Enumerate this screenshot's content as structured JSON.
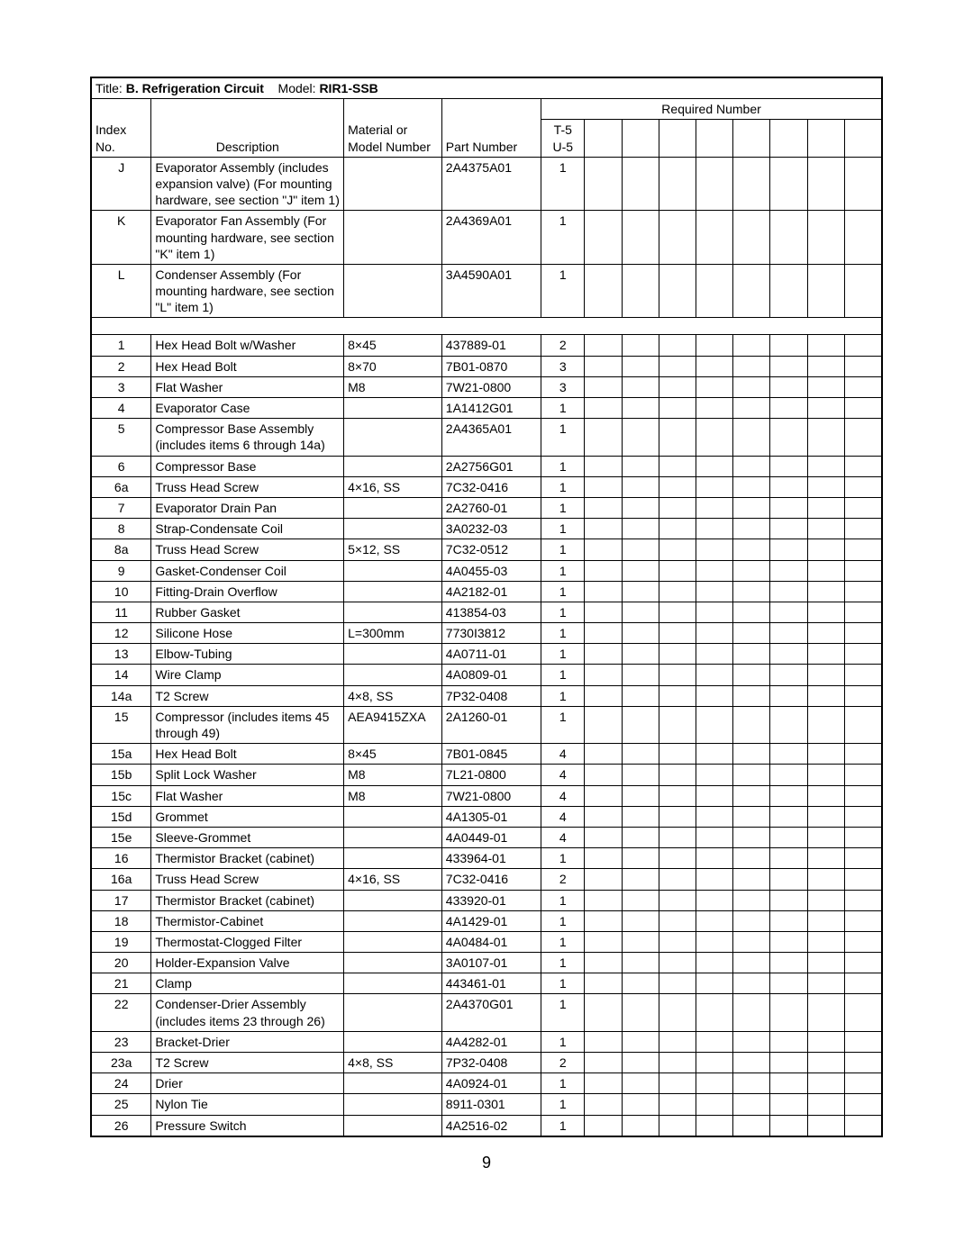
{
  "page_number": "9",
  "title": {
    "label": "Title: ",
    "name": "B. Refrigeration Circuit",
    "model_label": "Model: ",
    "model": "RIR1-SSB"
  },
  "headers": {
    "index": "Index No.",
    "description": "Description",
    "material": "Material or Model Number",
    "part": "Part Number",
    "required": "Required Number",
    "req_sub": "T-5 U-5"
  },
  "numExtraCols": 8,
  "rows": [
    {
      "idx": "J",
      "desc": "Evaporator Assembly (includes expansion valve) (For mounting hardware, see section \"J\" item 1)",
      "mat": "",
      "part": "2A4375A01",
      "req": "1"
    },
    {
      "idx": "K",
      "desc": "Evaporator Fan Assembly (For mounting hardware, see section \"K\" item 1)",
      "mat": "",
      "part": "2A4369A01",
      "req": "1"
    },
    {
      "idx": "L",
      "desc": "Condenser Assembly (For mounting hardware, see section \"L\" item 1)",
      "mat": "",
      "part": "3A4590A01",
      "req": "1"
    },
    {
      "spacer": true
    },
    {
      "idx": "1",
      "desc": "Hex Head Bolt w/Washer",
      "mat": "8×45",
      "part": "437889-01",
      "req": "2"
    },
    {
      "idx": "2",
      "desc": "Hex Head Bolt",
      "mat": "8×70",
      "part": "7B01-0870",
      "req": "3"
    },
    {
      "idx": "3",
      "desc": "Flat Washer",
      "mat": "M8",
      "part": "7W21-0800",
      "req": "3"
    },
    {
      "idx": "4",
      "desc": "Evaporator Case",
      "mat": "",
      "part": "1A1412G01",
      "req": "1"
    },
    {
      "idx": "5",
      "desc": "Compressor Base Assembly (includes items 6 through 14a)",
      "mat": "",
      "part": "2A4365A01",
      "req": "1"
    },
    {
      "idx": "6",
      "desc": "Compressor Base",
      "mat": "",
      "part": "2A2756G01",
      "req": "1"
    },
    {
      "idx": "6a",
      "desc": "Truss Head Screw",
      "mat": "4×16, SS",
      "part": "7C32-0416",
      "req": "1"
    },
    {
      "idx": "7",
      "desc": "Evaporator Drain Pan",
      "mat": "",
      "part": "2A2760-01",
      "req": "1"
    },
    {
      "idx": "8",
      "desc": "Strap-Condensate Coil",
      "mat": "",
      "part": "3A0232-03",
      "req": "1"
    },
    {
      "idx": "8a",
      "desc": "Truss Head Screw",
      "mat": "5×12, SS",
      "part": "7C32-0512",
      "req": "1"
    },
    {
      "idx": "9",
      "desc": "Gasket-Condenser Coil",
      "mat": "",
      "part": "4A0455-03",
      "req": "1"
    },
    {
      "idx": "10",
      "desc": "Fitting-Drain Overflow",
      "mat": "",
      "part": "4A2182-01",
      "req": "1"
    },
    {
      "idx": "11",
      "desc": "Rubber Gasket",
      "mat": "",
      "part": "413854-03",
      "req": "1"
    },
    {
      "idx": "12",
      "desc": "Silicone Hose",
      "mat": "L=300mm",
      "part": "7730I3812",
      "req": "1"
    },
    {
      "idx": "13",
      "desc": "Elbow-Tubing",
      "mat": "",
      "part": "4A0711-01",
      "req": "1"
    },
    {
      "idx": "14",
      "desc": "Wire Clamp",
      "mat": "",
      "part": "4A0809-01",
      "req": "1"
    },
    {
      "idx": "14a",
      "desc": "T2 Screw",
      "mat": "4×8, SS",
      "part": "7P32-0408",
      "req": "1"
    },
    {
      "idx": "15",
      "desc": "Compressor (includes items 45 through 49)",
      "mat": "AEA9415ZXA",
      "part": "2A1260-01",
      "req": "1"
    },
    {
      "idx": "15a",
      "desc": "Hex Head Bolt",
      "mat": "8×45",
      "part": "7B01-0845",
      "req": "4"
    },
    {
      "idx": "15b",
      "desc": "Split Lock Washer",
      "mat": "M8",
      "part": "7L21-0800",
      "req": "4"
    },
    {
      "idx": "15c",
      "desc": "Flat Washer",
      "mat": "M8",
      "part": "7W21-0800",
      "req": "4"
    },
    {
      "idx": "15d",
      "desc": "Grommet",
      "mat": "",
      "part": "4A1305-01",
      "req": "4"
    },
    {
      "idx": "15e",
      "desc": "Sleeve-Grommet",
      "mat": "",
      "part": "4A0449-01",
      "req": "4"
    },
    {
      "idx": "16",
      "desc": "Thermistor Bracket (cabinet)",
      "mat": "",
      "part": "433964-01",
      "req": "1"
    },
    {
      "idx": "16a",
      "desc": "Truss Head Screw",
      "mat": "4×16, SS",
      "part": "7C32-0416",
      "req": "2"
    },
    {
      "idx": "17",
      "desc": "Thermistor Bracket (cabinet)",
      "mat": "",
      "part": "433920-01",
      "req": "1"
    },
    {
      "idx": "18",
      "desc": "Thermistor-Cabinet",
      "mat": "",
      "part": "4A1429-01",
      "req": "1"
    },
    {
      "idx": "19",
      "desc": "Thermostat-Clogged Filter",
      "mat": "",
      "part": "4A0484-01",
      "req": "1"
    },
    {
      "idx": "20",
      "desc": "Holder-Expansion Valve",
      "mat": "",
      "part": "3A0107-01",
      "req": "1"
    },
    {
      "idx": "21",
      "desc": "Clamp",
      "mat": "",
      "part": "443461-01",
      "req": "1"
    },
    {
      "idx": "22",
      "desc": "Condenser-Drier Assembly (includes items 23 through 26)",
      "mat": "",
      "part": "2A4370G01",
      "req": "1"
    },
    {
      "idx": "23",
      "desc": "Bracket-Drier",
      "mat": "",
      "part": "4A4282-01",
      "req": "1"
    },
    {
      "idx": "23a",
      "desc": "T2 Screw",
      "mat": "4×8, SS",
      "part": "7P32-0408",
      "req": "2"
    },
    {
      "idx": "24",
      "desc": "Drier",
      "mat": "",
      "part": "4A0924-01",
      "req": "1"
    },
    {
      "idx": "25",
      "desc": "Nylon Tie",
      "mat": "",
      "part": "8911-0301",
      "req": "1"
    },
    {
      "idx": "26",
      "desc": "Pressure Switch",
      "mat": "",
      "part": "4A2516-02",
      "req": "1"
    }
  ]
}
